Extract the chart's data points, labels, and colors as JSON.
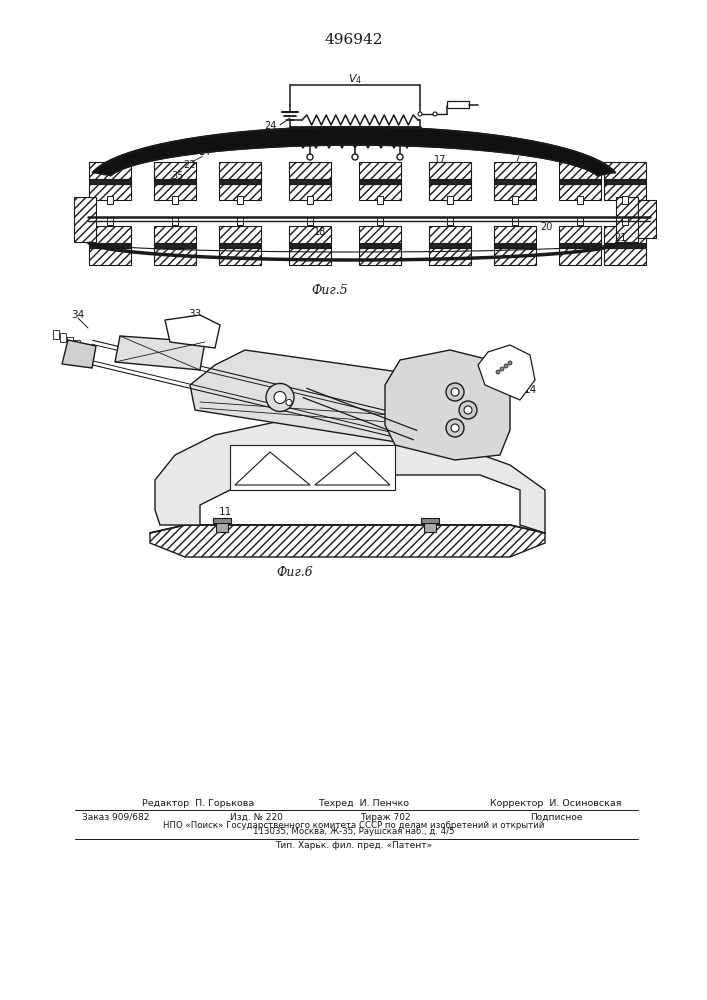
{
  "patent_number": "496942",
  "fig5_label": "Фиг.5",
  "fig6_label": "Фиг.6",
  "footer_editor": "Редактор  П. Горькова",
  "footer_tekhred": "Техред  И. Пенчко",
  "footer_korrektor": "Корректор  И. Осиновская",
  "footer_zakaz": "Заказ 909/682",
  "footer_izd": "Изд. № 220",
  "footer_tirazh": "Тираж 702",
  "footer_podpis": "Подписное",
  "footer_npo": "НПО «Поиск» Государственного комитета СССР по делам изобретений и открытий",
  "footer_addr": "113035, Москва, Ж-35, Раушская наб., д. 4/5",
  "footer_tip": "Тип. Харьк. фил. пред. «Патент»",
  "lc": "#1a1a1a",
  "hatch_fc": "#c8c8c8"
}
